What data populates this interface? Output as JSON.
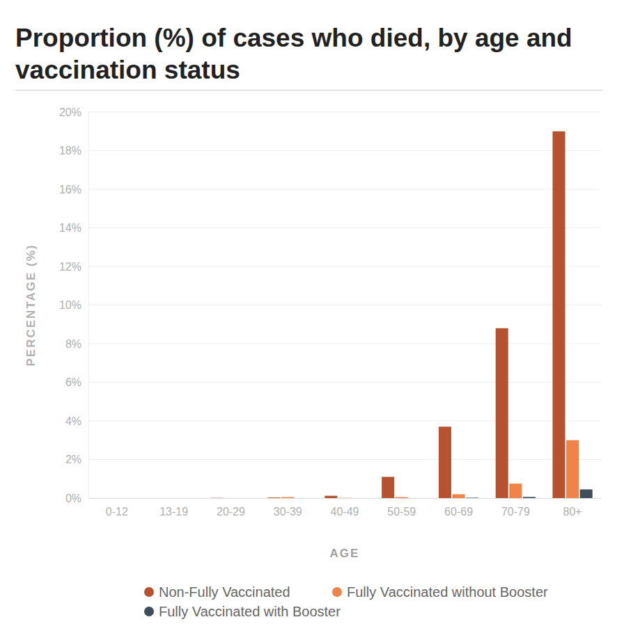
{
  "chart_data": {
    "type": "bar",
    "title": "Proportion (%) of cases who died, by age and vaccination status",
    "x_label": "AGE",
    "y_label": "PERCENTAGE (%)",
    "categories": [
      "0-12",
      "13-19",
      "20-29",
      "30-39",
      "40-49",
      "50-59",
      "60-69",
      "70-79",
      "80+"
    ],
    "series": [
      {
        "name": "Non-Fully Vaccinated",
        "color": "#b5522f",
        "values": [
          0,
          0,
          0.01,
          0.03,
          0.12,
          1.1,
          3.7,
          8.8,
          19.0
        ]
      },
      {
        "name": "Fully Vaccinated without Booster",
        "color": "#f0834a",
        "values": [
          0,
          0,
          0,
          0.05,
          0.01,
          0.05,
          0.2,
          0.75,
          3.0
        ]
      },
      {
        "name": "Fully Vaccinated with Booster",
        "color": "#3e4f5b",
        "values": [
          0,
          0,
          0,
          0,
          0,
          0,
          0.02,
          0.06,
          0.45
        ]
      }
    ],
    "ylim": [
      0,
      20
    ],
    "yticks": [
      {
        "value": 0,
        "label": "0%"
      },
      {
        "value": 2,
        "label": "2%"
      },
      {
        "value": 4,
        "label": "4%"
      },
      {
        "value": 6,
        "label": "6%"
      },
      {
        "value": 8,
        "label": "8%"
      },
      {
        "value": 10,
        "label": "10%"
      },
      {
        "value": 12,
        "label": "12%"
      },
      {
        "value": 14,
        "label": "14%"
      },
      {
        "value": 16,
        "label": "16%"
      },
      {
        "value": 18,
        "label": "18%"
      },
      {
        "value": 20,
        "label": "20%"
      }
    ],
    "grid": true,
    "legend": "bottom"
  }
}
